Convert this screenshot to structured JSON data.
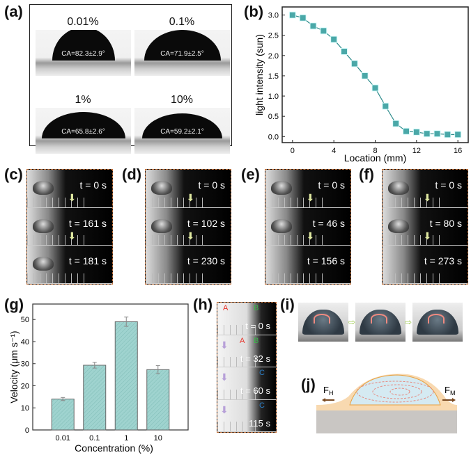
{
  "panels": {
    "a": "(a)",
    "b": "(b)",
    "c": "(c)",
    "d": "(d)",
    "e": "(e)",
    "f": "(f)",
    "g": "(g)",
    "h": "(h)",
    "i": "(i)",
    "j": "(j)"
  },
  "panel_a": {
    "cells": [
      {
        "concentration": "0.01%",
        "ca": "CA=82.3±2.9°"
      },
      {
        "concentration": "0.1%",
        "ca": "CA=71.9±2.5°"
      },
      {
        "concentration": "1%",
        "ca": "CA=65.8±2.6°"
      },
      {
        "concentration": "10%",
        "ca": "CA=59.2±2.1°"
      }
    ]
  },
  "sequences": [
    {
      "times": [
        "t = 0 s",
        "t = 161 s",
        "t = 181 s"
      ]
    },
    {
      "times": [
        "t = 0 s",
        "t = 102 s",
        "t = 230 s"
      ]
    },
    {
      "times": [
        "t = 0 s",
        "t = 46 s",
        "t = 156 s"
      ]
    },
    {
      "times": [
        "t = 0 s",
        "t = 80 s",
        "t = 273 s"
      ]
    }
  ],
  "panel_h": {
    "times": [
      "t = 0 s",
      "t = 32 s",
      "t = 60 s",
      "115 s"
    ],
    "labels": {
      "A": "A",
      "B": "B",
      "C": "C"
    },
    "label_colors": {
      "A": "#e8342a",
      "B": "#3cb44b",
      "C": "#2a7fc8"
    }
  },
  "panel_j": {
    "fh": "F",
    "fh_sub": "H",
    "fm": "F",
    "fm_sub": "M"
  },
  "chart_data": [
    {
      "type": "line",
      "xlabel": "Location (mm)",
      "ylabel": "light intensity (sun)",
      "x": [
        0,
        1,
        2,
        3,
        4,
        5,
        6,
        7,
        8,
        9,
        10,
        11,
        12,
        13,
        14,
        15,
        16
      ],
      "y": [
        3.0,
        2.93,
        2.73,
        2.61,
        2.4,
        2.1,
        1.8,
        1.5,
        1.2,
        0.75,
        0.32,
        0.13,
        0.11,
        0.07,
        0.07,
        0.05,
        0.05
      ],
      "xlim": [
        -1,
        17
      ],
      "ylim": [
        -0.15,
        3.2
      ],
      "xticks": [
        "0",
        "4",
        "8",
        "12",
        "16"
      ],
      "yticks": [
        "0.0",
        "0.5",
        "1.0",
        "1.5",
        "2.0",
        "2.5",
        "3.0"
      ],
      "marker": "square",
      "color": "#4aa8a8"
    },
    {
      "type": "bar",
      "xlabel": "Concentration (%)",
      "ylabel": "Velocity (μm s⁻¹)",
      "categories": [
        "0.01",
        "0.1",
        "1",
        "10"
      ],
      "values": [
        14,
        29.3,
        49,
        27.3
      ],
      "errors": [
        0.7,
        1.3,
        2.1,
        1.8
      ],
      "ylim": [
        0,
        57
      ],
      "yticks": [
        "0",
        "10",
        "20",
        "30",
        "40",
        "50"
      ],
      "color": "#9fd3cf"
    }
  ]
}
